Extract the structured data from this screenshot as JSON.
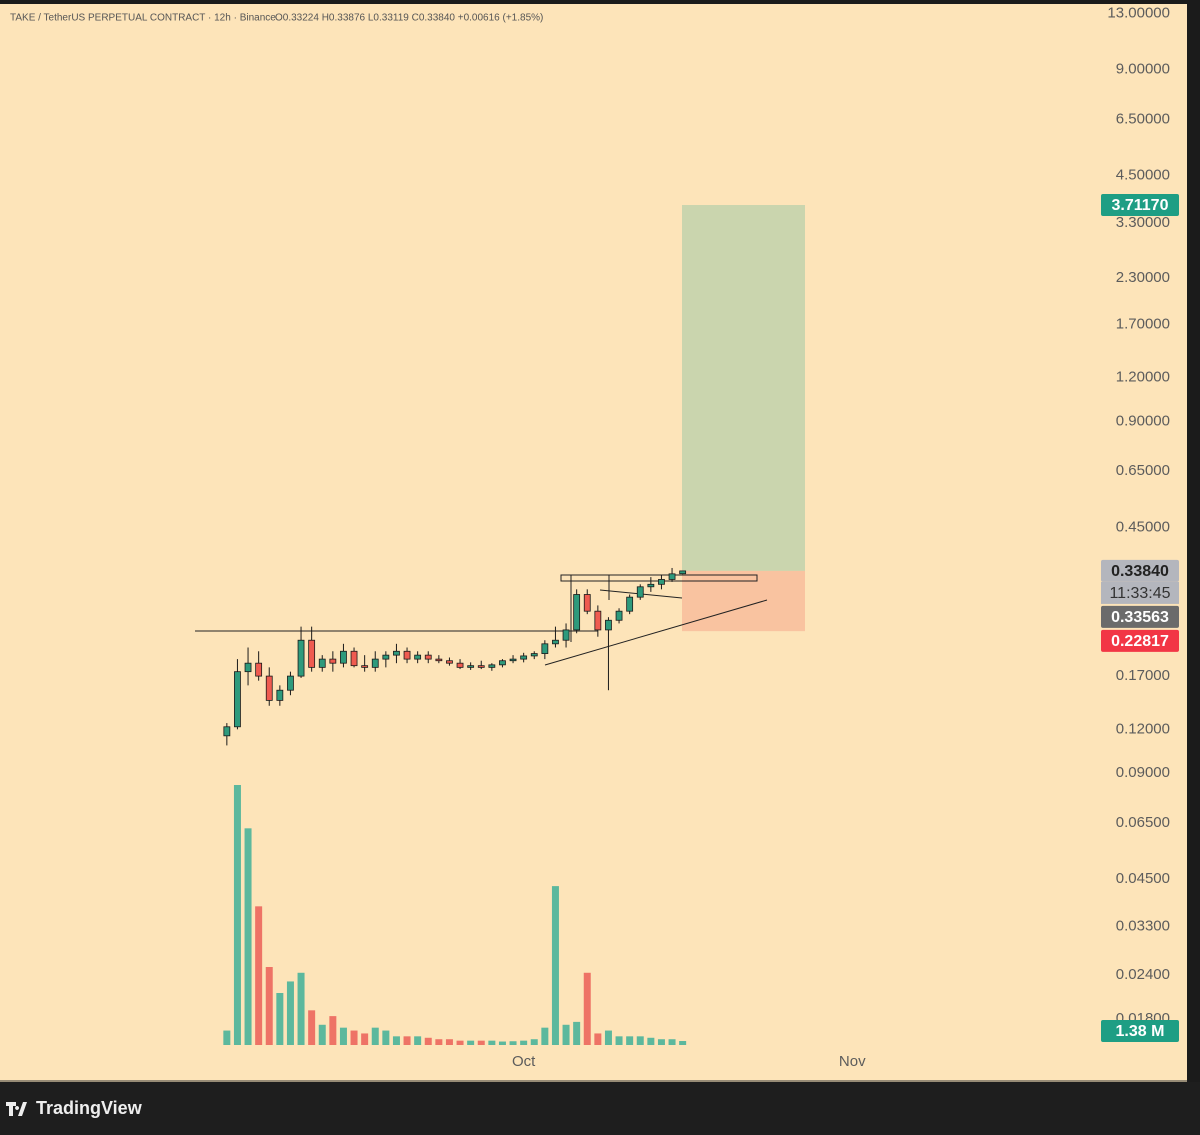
{
  "chart_data": {
    "type": "candlestick",
    "header": {
      "symbol": "TAKE / TetherUS PERPETUAL CONTRACT · 12h · Binance",
      "ohlc": "O0.33224 H0.33876 L0.33119 C0.33840 +0.00616 (+1.85%)"
    },
    "open": [
      0.115,
      0.122,
      0.175,
      0.185,
      0.17,
      0.145,
      0.155,
      0.17,
      0.215,
      0.18,
      0.19,
      0.185,
      0.2,
      0.182,
      0.18,
      0.19,
      0.195,
      0.2,
      0.19,
      0.195,
      0.19,
      0.188,
      0.185,
      0.18,
      0.182,
      0.18,
      0.183,
      0.188,
      0.19,
      0.194,
      0.197,
      0.21,
      0.215,
      0.23,
      0.29,
      0.26,
      0.23,
      0.245,
      0.26,
      0.285,
      0.305,
      0.31,
      0.32,
      0.33224
    ],
    "high": [
      0.125,
      0.19,
      0.205,
      0.2,
      0.18,
      0.16,
      0.175,
      0.235,
      0.235,
      0.195,
      0.2,
      0.21,
      0.205,
      0.195,
      0.2,
      0.2,
      0.21,
      0.205,
      0.2,
      0.2,
      0.195,
      0.192,
      0.19,
      0.186,
      0.188,
      0.185,
      0.19,
      0.195,
      0.198,
      0.2,
      0.215,
      0.235,
      0.24,
      0.3,
      0.3,
      0.27,
      0.25,
      0.265,
      0.29,
      0.31,
      0.325,
      0.33,
      0.345,
      0.33876
    ],
    "low": [
      0.108,
      0.12,
      0.16,
      0.165,
      0.14,
      0.14,
      0.15,
      0.168,
      0.175,
      0.175,
      0.175,
      0.18,
      0.18,
      0.175,
      0.175,
      0.18,
      0.185,
      0.185,
      0.185,
      0.185,
      0.185,
      0.182,
      0.178,
      0.177,
      0.178,
      0.176,
      0.18,
      0.185,
      0.186,
      0.19,
      0.19,
      0.205,
      0.205,
      0.225,
      0.255,
      0.22,
      0.155,
      0.24,
      0.255,
      0.28,
      0.295,
      0.3,
      0.315,
      0.33119
    ],
    "close": [
      0.122,
      0.175,
      0.185,
      0.17,
      0.145,
      0.155,
      0.17,
      0.215,
      0.18,
      0.19,
      0.185,
      0.2,
      0.182,
      0.18,
      0.19,
      0.195,
      0.2,
      0.19,
      0.195,
      0.19,
      0.188,
      0.185,
      0.18,
      0.182,
      0.18,
      0.183,
      0.188,
      0.19,
      0.194,
      0.197,
      0.21,
      0.215,
      0.23,
      0.29,
      0.26,
      0.23,
      0.245,
      0.26,
      0.285,
      0.305,
      0.31,
      0.32,
      0.332,
      0.3384
    ],
    "volume": [
      5,
      90,
      75,
      48,
      27,
      18,
      22,
      25,
      12,
      7,
      10,
      6,
      5,
      4,
      6,
      5,
      3,
      3,
      3,
      2.5,
      2,
      2,
      1.5,
      1.5,
      1.5,
      1.5,
      1.2,
      1.3,
      1.5,
      2,
      6,
      55,
      7,
      8,
      25,
      4,
      5,
      3,
      3,
      3,
      2.5,
      2,
      2,
      1.38
    ],
    "up_color": "#2e9a7c",
    "down_color": "#ef5b50",
    "volume_up_color": "#5cb89d",
    "volume_down_color": "#ee7366",
    "log_scale": true,
    "ylim": [
      0.0152,
      14.2
    ],
    "yticks": [
      {
        "value": 13,
        "label": "13.00000"
      },
      {
        "value": 9,
        "label": "9.00000"
      },
      {
        "value": 6.5,
        "label": "6.50000"
      },
      {
        "value": 4.5,
        "label": "4.50000"
      },
      {
        "value": 3.3,
        "label": "3.30000"
      },
      {
        "value": 2.3,
        "label": "2.30000"
      },
      {
        "value": 1.7,
        "label": "1.70000"
      },
      {
        "value": 1.2,
        "label": "1.20000"
      },
      {
        "value": 0.9,
        "label": "0.90000"
      },
      {
        "value": 0.65,
        "label": "0.65000"
      },
      {
        "value": 0.45,
        "label": "0.45000"
      },
      {
        "value": 0.17,
        "label": "0.17000"
      },
      {
        "value": 0.12,
        "label": "0.12000"
      },
      {
        "value": 0.09,
        "label": "0.09000"
      },
      {
        "value": 0.065,
        "label": "0.06500"
      },
      {
        "value": 0.045,
        "label": "0.04500"
      },
      {
        "value": 0.033,
        "label": "0.03300"
      },
      {
        "value": 0.024,
        "label": "0.02400"
      },
      {
        "value": 0.018,
        "label": "0.01800"
      }
    ],
    "xlim": [
      -21.4,
      81.9
    ],
    "xticks": [
      {
        "value": 28,
        "label": "Oct"
      },
      {
        "value": 59,
        "label": "Nov"
      }
    ],
    "volume_ylim": [
      0,
      90
    ],
    "price_labels": [
      {
        "value": 3.7117,
        "label": "3.71170",
        "color": "#1e9e84"
      },
      {
        "value": 0.3384,
        "label": "0.33840",
        "color": "#b4b6bd"
      },
      {
        "value": 0.33563,
        "label": "0.33563",
        "color": "#6b6b6b"
      },
      {
        "value": 0.22817,
        "label": "0.22817",
        "color": "#f23645"
      }
    ],
    "countdown": "11:33:45",
    "volume_label": {
      "value": 1.38,
      "label": "1.38 M",
      "color": "#1e9e84"
    },
    "target_color": "#cad5ae",
    "stop_color": "#f9c3a0",
    "brand": "TradingView"
  }
}
